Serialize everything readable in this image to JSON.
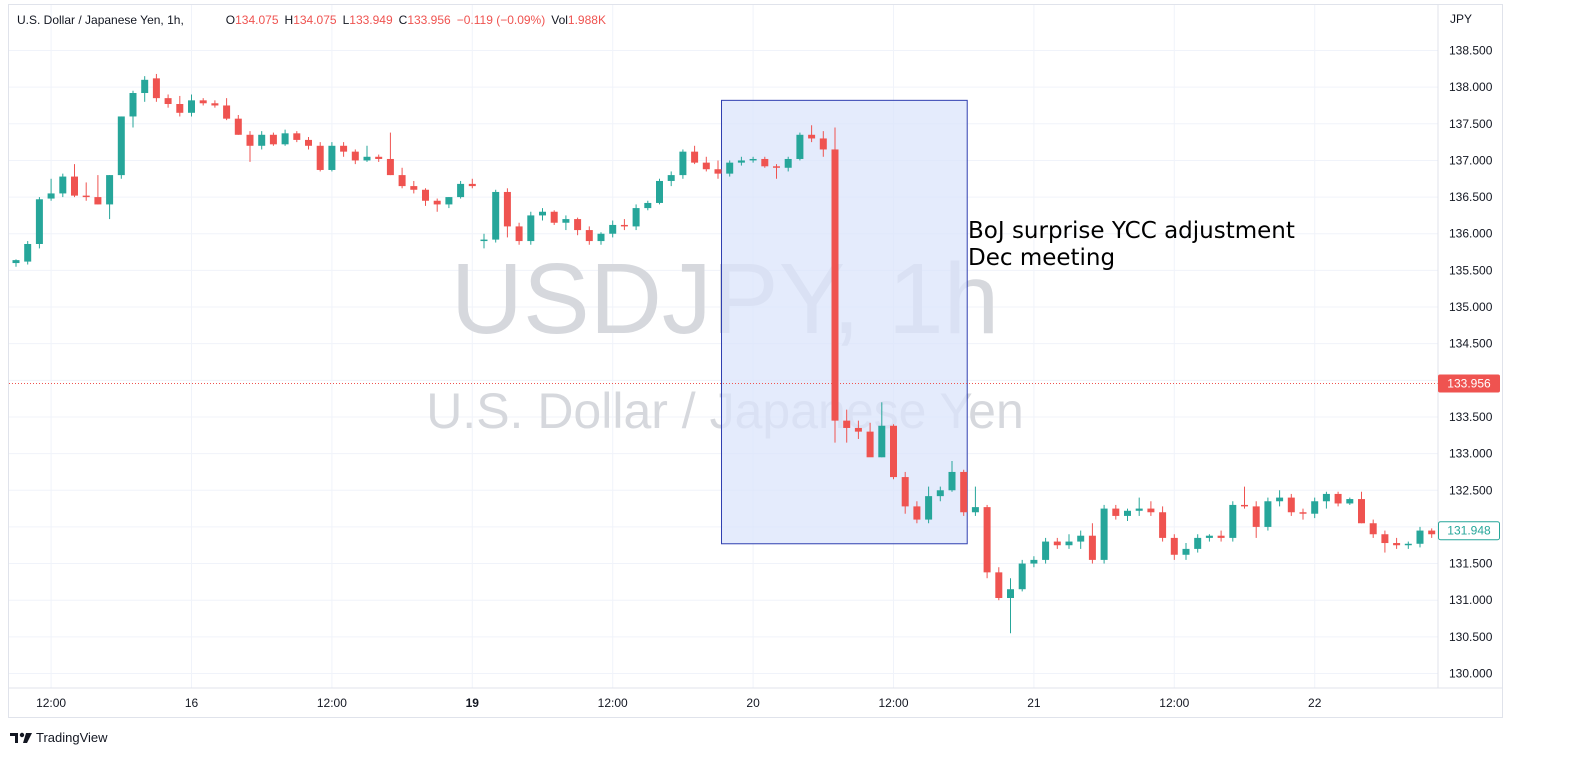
{
  "legend": {
    "symbol": "U.S. Dollar / Japanese Yen, 1h,",
    "open_label": "O",
    "open": "134.075",
    "high_label": "H",
    "high": "134.075",
    "low_label": "L",
    "low": "133.949",
    "close_label": "C",
    "close": "133.956",
    "change": "−0.119 (−0.09%)",
    "volume_label": "Vol",
    "volume": "1.988K"
  },
  "currency_label": "JPY",
  "watermark": {
    "symbol": "USDJPY, 1h",
    "name": "U.S. Dollar / Japanese Yen"
  },
  "annotation": {
    "line1": "BoJ surprise YCC adjustment",
    "line2": "Dec meeting"
  },
  "footer": {
    "brand": "TradingView"
  },
  "colors": {
    "up": "#26a69a",
    "down": "#ef5350",
    "highlight_fill": "#dbe4fb",
    "highlight_stroke": "#2f3fb0",
    "grid": "#f0f3fa"
  },
  "chart_data": {
    "type": "candlestick",
    "title": "U.S. Dollar / Japanese Yen, 1h",
    "y_axis": {
      "ticks": [
        "138.500",
        "138.000",
        "137.500",
        "137.000",
        "136.500",
        "136.000",
        "135.500",
        "135.000",
        "134.500",
        "134.000",
        "133.500",
        "133.000",
        "132.500",
        "132.000",
        "131.500",
        "131.000",
        "130.500",
        "130.000"
      ],
      "range": [
        129.8,
        138.9
      ]
    },
    "x_axis": {
      "ticks": [
        {
          "label": "12:00",
          "bar": 3,
          "bold": false
        },
        {
          "label": "16",
          "bar": 15,
          "bold": false
        },
        {
          "label": "12:00",
          "bar": 27,
          "bold": false
        },
        {
          "label": "19",
          "bar": 39,
          "bold": true
        },
        {
          "label": "12:00",
          "bar": 51,
          "bold": false
        },
        {
          "label": "20",
          "bar": 63,
          "bold": false
        },
        {
          "label": "12:00",
          "bar": 75,
          "bold": false
        },
        {
          "label": "21",
          "bar": 87,
          "bold": false
        },
        {
          "label": "12:00",
          "bar": 99,
          "bold": false
        },
        {
          "label": "22",
          "bar": 111,
          "bold": false
        }
      ]
    },
    "last_price": {
      "value": 133.956,
      "label": "133.956",
      "color": "#ef5350"
    },
    "current_price": {
      "value": 131.948,
      "label": "131.948",
      "color": "#26a69a"
    },
    "highlight": {
      "from_bar": 60.3,
      "to_bar": 81.3,
      "top": 137.82,
      "bottom": 131.77
    },
    "candles": [
      [
        135.6,
        135.65,
        135.55,
        135.64
      ],
      [
        135.62,
        135.9,
        135.58,
        135.86
      ],
      [
        135.86,
        136.5,
        135.8,
        136.47
      ],
      [
        136.48,
        136.75,
        136.45,
        136.55
      ],
      [
        136.55,
        136.82,
        136.5,
        136.78
      ],
      [
        136.78,
        136.95,
        136.5,
        136.52
      ],
      [
        136.52,
        136.7,
        136.45,
        136.5
      ],
      [
        136.5,
        136.8,
        136.4,
        136.4
      ],
      [
        136.4,
        136.8,
        136.2,
        136.8
      ],
      [
        136.8,
        137.6,
        136.75,
        137.6
      ],
      [
        137.6,
        137.95,
        137.45,
        137.92
      ],
      [
        137.92,
        138.15,
        137.8,
        138.1
      ],
      [
        138.12,
        138.18,
        137.8,
        137.85
      ],
      [
        137.85,
        137.9,
        137.72,
        137.77
      ],
      [
        137.77,
        137.88,
        137.6,
        137.65
      ],
      [
        137.65,
        137.9,
        137.6,
        137.82
      ],
      [
        137.82,
        137.85,
        137.75,
        137.78
      ],
      [
        137.78,
        137.82,
        137.72,
        137.75
      ],
      [
        137.75,
        137.85,
        137.55,
        137.57
      ],
      [
        137.57,
        137.62,
        137.35,
        137.35
      ],
      [
        137.35,
        137.4,
        136.98,
        137.2
      ],
      [
        137.2,
        137.4,
        137.15,
        137.35
      ],
      [
        137.35,
        137.38,
        137.2,
        137.22
      ],
      [
        137.22,
        137.42,
        137.2,
        137.37
      ],
      [
        137.37,
        137.4,
        137.25,
        137.28
      ],
      [
        137.28,
        137.32,
        137.15,
        137.2
      ],
      [
        137.2,
        137.25,
        136.85,
        136.87
      ],
      [
        136.87,
        137.25,
        136.85,
        137.2
      ],
      [
        137.2,
        137.25,
        137.05,
        137.12
      ],
      [
        137.12,
        137.15,
        136.95,
        137.0
      ],
      [
        137.0,
        137.2,
        136.98,
        137.05
      ],
      [
        137.05,
        137.08,
        136.98,
        137.02
      ],
      [
        137.02,
        137.38,
        136.8,
        136.8
      ],
      [
        136.8,
        136.9,
        136.62,
        136.65
      ],
      [
        136.65,
        136.72,
        136.55,
        136.6
      ],
      [
        136.6,
        136.62,
        136.38,
        136.45
      ],
      [
        136.45,
        136.48,
        136.3,
        136.4
      ],
      [
        136.4,
        136.5,
        136.35,
        136.5
      ],
      [
        136.5,
        136.72,
        136.48,
        136.68
      ],
      [
        136.68,
        136.75,
        136.62,
        136.65
      ],
      [
        135.9,
        136.0,
        135.8,
        135.92
      ],
      [
        135.92,
        136.6,
        135.88,
        136.57
      ],
      [
        136.57,
        136.62,
        135.95,
        136.1
      ],
      [
        136.1,
        136.15,
        135.85,
        135.9
      ],
      [
        135.9,
        136.3,
        135.85,
        136.25
      ],
      [
        136.25,
        136.35,
        136.18,
        136.3
      ],
      [
        136.3,
        136.32,
        136.12,
        136.15
      ],
      [
        136.15,
        136.25,
        136.05,
        136.2
      ],
      [
        136.2,
        136.22,
        135.98,
        136.05
      ],
      [
        136.05,
        136.1,
        135.85,
        135.9
      ],
      [
        135.9,
        136.02,
        135.85,
        136.0
      ],
      [
        136.0,
        136.18,
        135.95,
        136.12
      ],
      [
        136.12,
        136.2,
        136.05,
        136.1
      ],
      [
        136.1,
        136.4,
        136.05,
        136.35
      ],
      [
        136.35,
        136.45,
        136.32,
        136.42
      ],
      [
        136.42,
        136.75,
        136.4,
        136.72
      ],
      [
        136.72,
        136.85,
        136.65,
        136.8
      ],
      [
        136.8,
        137.15,
        136.75,
        137.12
      ],
      [
        137.12,
        137.2,
        136.95,
        136.97
      ],
      [
        136.97,
        137.05,
        136.85,
        136.88
      ],
      [
        136.88,
        137.0,
        136.75,
        136.82
      ],
      [
        136.82,
        137.0,
        136.78,
        136.97
      ],
      [
        136.97,
        137.05,
        136.93,
        137.0
      ],
      [
        137.0,
        137.05,
        136.97,
        137.02
      ],
      [
        137.02,
        137.05,
        136.9,
        136.92
      ],
      [
        136.92,
        136.95,
        136.75,
        136.9
      ],
      [
        136.9,
        137.05,
        136.85,
        137.02
      ],
      [
        137.02,
        137.38,
        137.0,
        137.35
      ],
      [
        137.35,
        137.48,
        137.25,
        137.3
      ],
      [
        137.3,
        137.4,
        137.05,
        137.15
      ],
      [
        137.15,
        137.45,
        133.15,
        133.45
      ],
      [
        133.45,
        133.6,
        133.15,
        133.35
      ],
      [
        133.35,
        133.45,
        133.2,
        133.3
      ],
      [
        133.3,
        133.42,
        133.0,
        132.95
      ],
      [
        132.95,
        133.7,
        132.95,
        133.38
      ],
      [
        133.38,
        133.4,
        132.65,
        132.68
      ],
      [
        132.68,
        132.75,
        132.18,
        132.28
      ],
      [
        132.28,
        132.35,
        132.05,
        132.1
      ],
      [
        132.1,
        132.55,
        132.05,
        132.42
      ],
      [
        132.42,
        132.55,
        132.35,
        132.5
      ],
      [
        132.5,
        132.9,
        132.48,
        132.75
      ],
      [
        132.75,
        132.78,
        132.15,
        132.2
      ],
      [
        132.2,
        132.55,
        132.15,
        132.27
      ],
      [
        132.27,
        132.3,
        131.3,
        131.38
      ],
      [
        131.38,
        131.45,
        131.0,
        131.03
      ],
      [
        131.03,
        131.3,
        130.55,
        131.15
      ],
      [
        131.15,
        131.55,
        131.12,
        131.5
      ],
      [
        131.5,
        131.6,
        131.45,
        131.55
      ],
      [
        131.55,
        131.85,
        131.5,
        131.8
      ],
      [
        131.8,
        131.85,
        131.7,
        131.75
      ],
      [
        131.75,
        131.9,
        131.7,
        131.8
      ],
      [
        131.8,
        131.95,
        131.7,
        131.88
      ],
      [
        131.88,
        132.05,
        131.5,
        131.55
      ],
      [
        131.55,
        132.3,
        131.5,
        132.25
      ],
      [
        132.25,
        132.3,
        132.1,
        132.15
      ],
      [
        132.15,
        132.25,
        132.08,
        132.22
      ],
      [
        132.22,
        132.4,
        132.15,
        132.25
      ],
      [
        132.25,
        132.35,
        132.15,
        132.2
      ],
      [
        132.2,
        132.28,
        131.8,
        131.85
      ],
      [
        131.85,
        131.9,
        131.55,
        131.62
      ],
      [
        131.62,
        131.78,
        131.55,
        131.7
      ],
      [
        131.7,
        131.9,
        131.65,
        131.85
      ],
      [
        131.85,
        131.9,
        131.8,
        131.88
      ],
      [
        131.88,
        131.95,
        131.8,
        131.85
      ],
      [
        131.85,
        132.35,
        131.8,
        132.3
      ],
      [
        132.3,
        132.55,
        132.25,
        132.28
      ],
      [
        132.28,
        132.35,
        131.85,
        132.0
      ],
      [
        132.0,
        132.4,
        131.95,
        132.35
      ],
      [
        132.35,
        132.5,
        132.28,
        132.4
      ],
      [
        132.4,
        132.45,
        132.15,
        132.2
      ],
      [
        132.2,
        132.25,
        132.1,
        132.18
      ],
      [
        132.18,
        132.4,
        132.12,
        132.35
      ],
      [
        132.35,
        132.48,
        132.25,
        132.45
      ],
      [
        132.45,
        132.48,
        132.28,
        132.32
      ],
      [
        132.32,
        132.4,
        132.3,
        132.38
      ],
      [
        132.38,
        132.48,
        132.05,
        132.05
      ],
      [
        132.05,
        132.1,
        131.85,
        131.9
      ],
      [
        131.9,
        131.95,
        131.65,
        131.78
      ],
      [
        131.78,
        131.85,
        131.7,
        131.75
      ],
      [
        131.75,
        131.8,
        131.7,
        131.77
      ],
      [
        131.77,
        132.0,
        131.72,
        131.95
      ],
      [
        131.95,
        131.98,
        131.85,
        131.9
      ],
      [
        131.9,
        131.98,
        131.85,
        131.93
      ]
    ]
  }
}
